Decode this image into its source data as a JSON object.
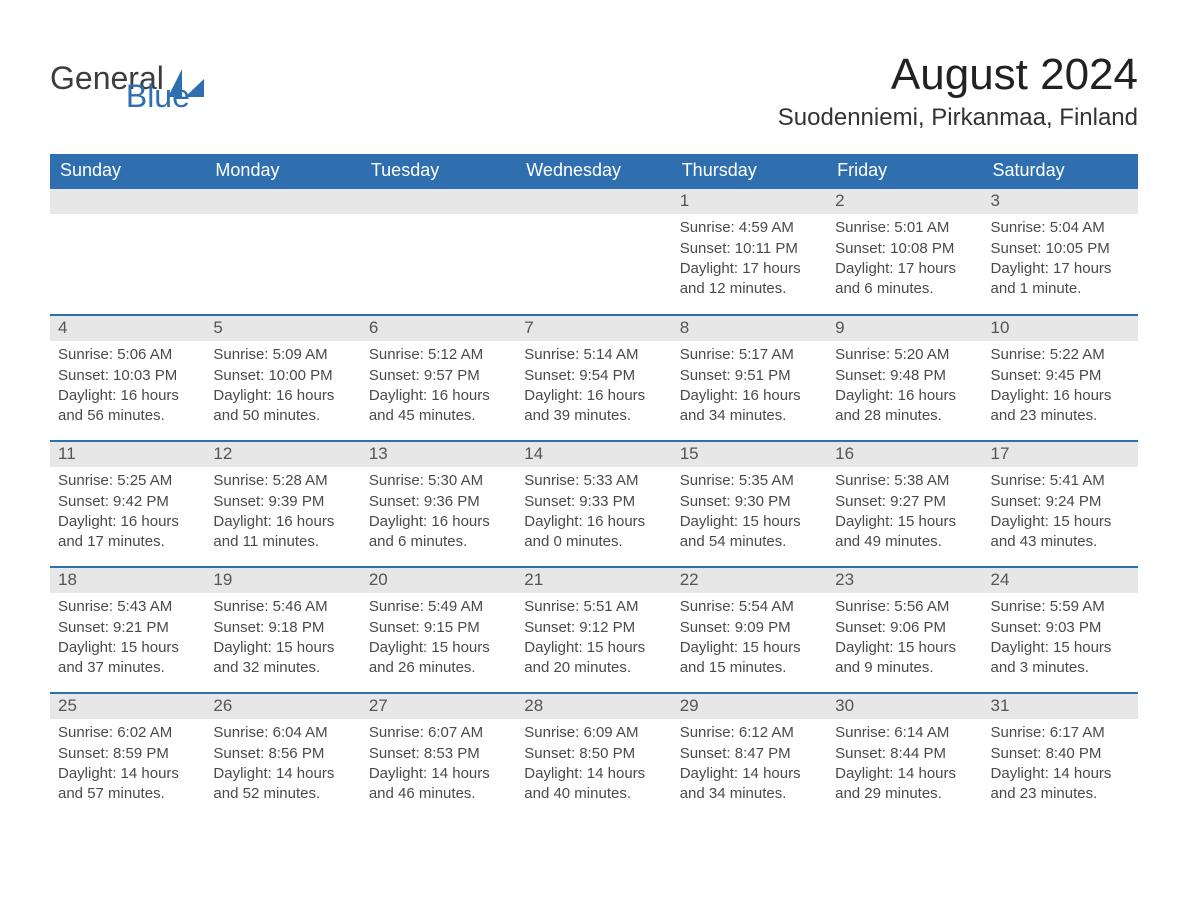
{
  "brand": {
    "part1": "General",
    "part2": "Blue"
  },
  "title": "August 2024",
  "location": "Suodenniemi, Pirkanmaa, Finland",
  "colors": {
    "header_bg": "#2f6fb0",
    "header_text": "#ffffff",
    "day_header_bg": "#e7e7e7",
    "rule": "#2f6fb0",
    "body_text": "#4a4a4a",
    "page_bg": "#ffffff",
    "logo_blue": "#2f6fb0",
    "logo_gray": "#3d3d3d"
  },
  "day_headers": [
    "Sunday",
    "Monday",
    "Tuesday",
    "Wednesday",
    "Thursday",
    "Friday",
    "Saturday"
  ],
  "first_weekday_index": 4,
  "days_in_month": 31,
  "days": [
    {
      "n": 1,
      "sunrise": "4:59 AM",
      "sunset": "10:11 PM",
      "daylight": "17 hours and 12 minutes."
    },
    {
      "n": 2,
      "sunrise": "5:01 AM",
      "sunset": "10:08 PM",
      "daylight": "17 hours and 6 minutes."
    },
    {
      "n": 3,
      "sunrise": "5:04 AM",
      "sunset": "10:05 PM",
      "daylight": "17 hours and 1 minute."
    },
    {
      "n": 4,
      "sunrise": "5:06 AM",
      "sunset": "10:03 PM",
      "daylight": "16 hours and 56 minutes."
    },
    {
      "n": 5,
      "sunrise": "5:09 AM",
      "sunset": "10:00 PM",
      "daylight": "16 hours and 50 minutes."
    },
    {
      "n": 6,
      "sunrise": "5:12 AM",
      "sunset": "9:57 PM",
      "daylight": "16 hours and 45 minutes."
    },
    {
      "n": 7,
      "sunrise": "5:14 AM",
      "sunset": "9:54 PM",
      "daylight": "16 hours and 39 minutes."
    },
    {
      "n": 8,
      "sunrise": "5:17 AM",
      "sunset": "9:51 PM",
      "daylight": "16 hours and 34 minutes."
    },
    {
      "n": 9,
      "sunrise": "5:20 AM",
      "sunset": "9:48 PM",
      "daylight": "16 hours and 28 minutes."
    },
    {
      "n": 10,
      "sunrise": "5:22 AM",
      "sunset": "9:45 PM",
      "daylight": "16 hours and 23 minutes."
    },
    {
      "n": 11,
      "sunrise": "5:25 AM",
      "sunset": "9:42 PM",
      "daylight": "16 hours and 17 minutes."
    },
    {
      "n": 12,
      "sunrise": "5:28 AM",
      "sunset": "9:39 PM",
      "daylight": "16 hours and 11 minutes."
    },
    {
      "n": 13,
      "sunrise": "5:30 AM",
      "sunset": "9:36 PM",
      "daylight": "16 hours and 6 minutes."
    },
    {
      "n": 14,
      "sunrise": "5:33 AM",
      "sunset": "9:33 PM",
      "daylight": "16 hours and 0 minutes."
    },
    {
      "n": 15,
      "sunrise": "5:35 AM",
      "sunset": "9:30 PM",
      "daylight": "15 hours and 54 minutes."
    },
    {
      "n": 16,
      "sunrise": "5:38 AM",
      "sunset": "9:27 PM",
      "daylight": "15 hours and 49 minutes."
    },
    {
      "n": 17,
      "sunrise": "5:41 AM",
      "sunset": "9:24 PM",
      "daylight": "15 hours and 43 minutes."
    },
    {
      "n": 18,
      "sunrise": "5:43 AM",
      "sunset": "9:21 PM",
      "daylight": "15 hours and 37 minutes."
    },
    {
      "n": 19,
      "sunrise": "5:46 AM",
      "sunset": "9:18 PM",
      "daylight": "15 hours and 32 minutes."
    },
    {
      "n": 20,
      "sunrise": "5:49 AM",
      "sunset": "9:15 PM",
      "daylight": "15 hours and 26 minutes."
    },
    {
      "n": 21,
      "sunrise": "5:51 AM",
      "sunset": "9:12 PM",
      "daylight": "15 hours and 20 minutes."
    },
    {
      "n": 22,
      "sunrise": "5:54 AM",
      "sunset": "9:09 PM",
      "daylight": "15 hours and 15 minutes."
    },
    {
      "n": 23,
      "sunrise": "5:56 AM",
      "sunset": "9:06 PM",
      "daylight": "15 hours and 9 minutes."
    },
    {
      "n": 24,
      "sunrise": "5:59 AM",
      "sunset": "9:03 PM",
      "daylight": "15 hours and 3 minutes."
    },
    {
      "n": 25,
      "sunrise": "6:02 AM",
      "sunset": "8:59 PM",
      "daylight": "14 hours and 57 minutes."
    },
    {
      "n": 26,
      "sunrise": "6:04 AM",
      "sunset": "8:56 PM",
      "daylight": "14 hours and 52 minutes."
    },
    {
      "n": 27,
      "sunrise": "6:07 AM",
      "sunset": "8:53 PM",
      "daylight": "14 hours and 46 minutes."
    },
    {
      "n": 28,
      "sunrise": "6:09 AM",
      "sunset": "8:50 PM",
      "daylight": "14 hours and 40 minutes."
    },
    {
      "n": 29,
      "sunrise": "6:12 AM",
      "sunset": "8:47 PM",
      "daylight": "14 hours and 34 minutes."
    },
    {
      "n": 30,
      "sunrise": "6:14 AM",
      "sunset": "8:44 PM",
      "daylight": "14 hours and 29 minutes."
    },
    {
      "n": 31,
      "sunrise": "6:17 AM",
      "sunset": "8:40 PM",
      "daylight": "14 hours and 23 minutes."
    }
  ],
  "labels": {
    "sunrise": "Sunrise:",
    "sunset": "Sunset:",
    "daylight": "Daylight:"
  }
}
